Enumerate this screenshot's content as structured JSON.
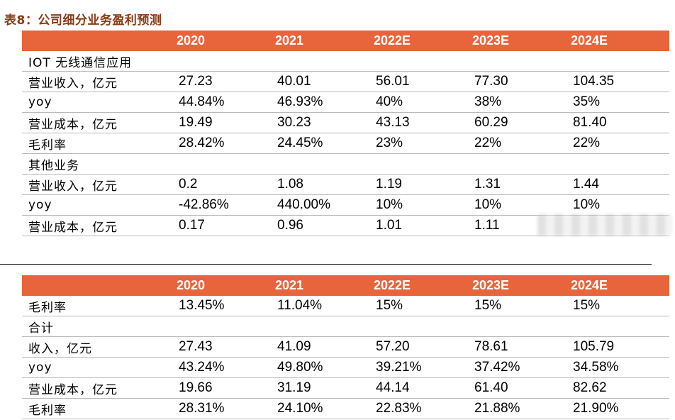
{
  "title": "表8：公司细分业务盈利预测",
  "table1": {
    "headers": [
      "",
      "2020",
      "2021",
      "2022E",
      "2023E",
      "2024E"
    ],
    "rows": [
      {
        "label": "IOT 无线通信应用",
        "values": [
          "",
          "",
          "",
          "",
          ""
        ]
      },
      {
        "label": "营业收入，亿元",
        "values": [
          "27.23",
          "40.01",
          "56.01",
          "77.30",
          "104.35"
        ]
      },
      {
        "label": "yoy",
        "values": [
          "44.84%",
          "46.93%",
          "40%",
          "38%",
          "35%"
        ]
      },
      {
        "label": "营业成本，亿元",
        "values": [
          "19.49",
          "30.23",
          "43.13",
          "60.29",
          "81.40"
        ]
      },
      {
        "label": "毛利率",
        "values": [
          "28.42%",
          "24.45%",
          "23%",
          "22%",
          "22%"
        ]
      },
      {
        "label": "其他业务",
        "values": [
          "",
          "",
          "",
          "",
          ""
        ]
      },
      {
        "label": "营业收入，亿元",
        "values": [
          "0.2",
          "1.08",
          "1.19",
          "1.31",
          "1.44"
        ]
      },
      {
        "label": "yoy",
        "values": [
          "-42.86%",
          "440.00%",
          "10%",
          "10%",
          "10%"
        ]
      },
      {
        "label": "营业成本，亿元",
        "values": [
          "0.17",
          "0.96",
          "1.01",
          "1.11",
          ""
        ]
      }
    ]
  },
  "table2": {
    "headers": [
      "",
      "2020",
      "2021",
      "2022E",
      "2023E",
      "2024E"
    ],
    "rows": [
      {
        "label": "毛利率",
        "values": [
          "13.45%",
          "11.04%",
          "15%",
          "15%",
          "15%"
        ]
      },
      {
        "label": "合计",
        "values": [
          "",
          "",
          "",
          "",
          ""
        ]
      },
      {
        "label": "收入，亿元",
        "values": [
          "27.43",
          "41.09",
          "57.20",
          "78.61",
          "105.79"
        ]
      },
      {
        "label": "yoy",
        "values": [
          "43.24%",
          "49.80%",
          "39.21%",
          "37.42%",
          "34.58%"
        ]
      },
      {
        "label": "营业成本，亿元",
        "values": [
          "19.66",
          "31.19",
          "44.14",
          "61.40",
          "82.62"
        ]
      },
      {
        "label": "毛利率",
        "values": [
          "28.31%",
          "24.10%",
          "22.83%",
          "21.88%",
          "21.90%"
        ]
      }
    ]
  }
}
